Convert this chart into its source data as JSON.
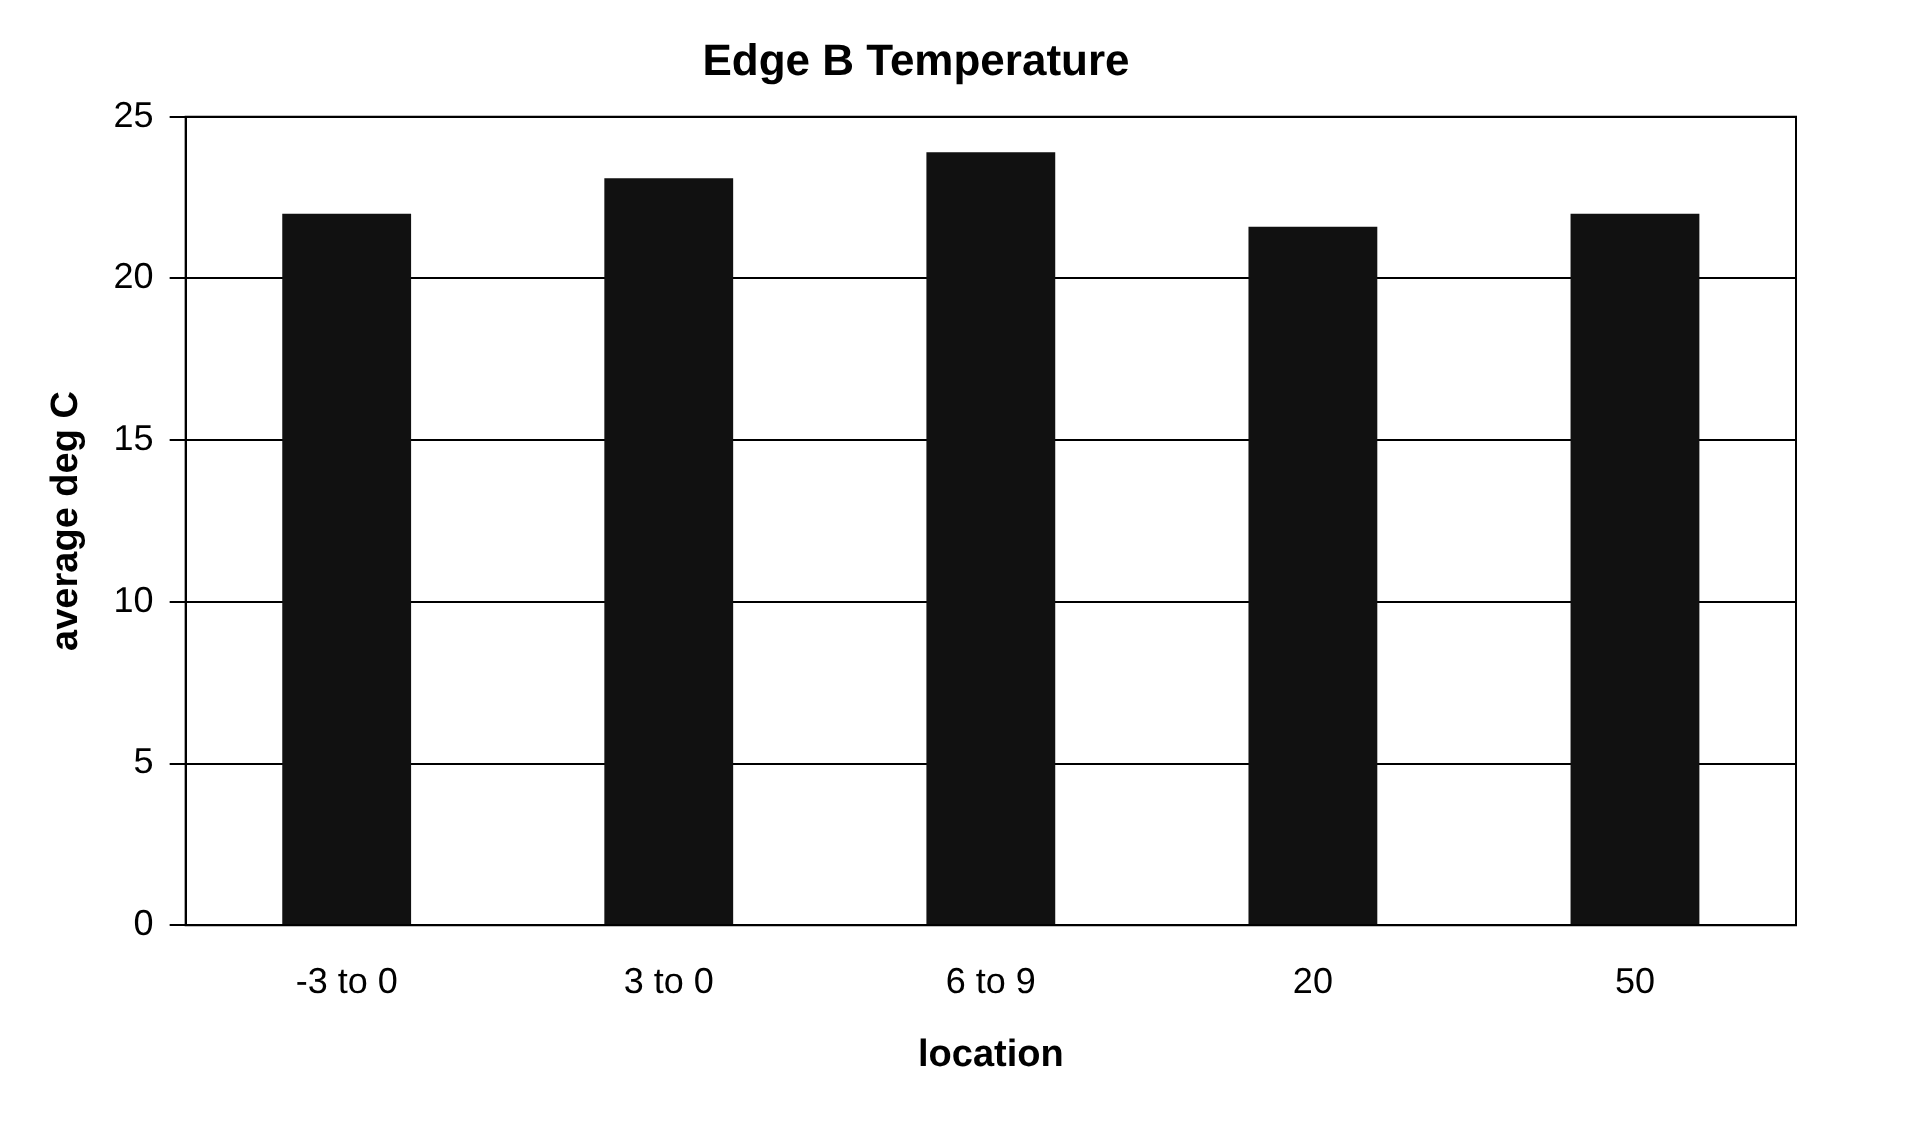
{
  "chart_data": {
    "type": "bar",
    "title": "Edge B Temperature",
    "xlabel": "location",
    "ylabel": "average deg C",
    "categories": [
      "-3 to 0",
      "3 to 0",
      "6 to 9",
      "20",
      "50"
    ],
    "values": [
      22.0,
      23.1,
      23.9,
      21.6,
      22.0
    ],
    "color": "#111111",
    "ylim": [
      0,
      25
    ],
    "yticks": [
      0,
      5,
      10,
      15,
      20,
      25
    ],
    "grid": "y",
    "legend": false
  }
}
